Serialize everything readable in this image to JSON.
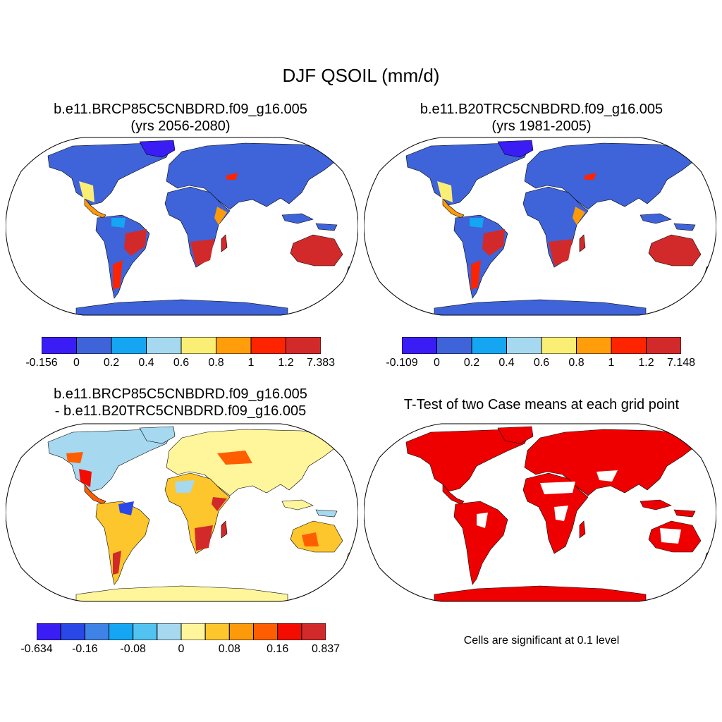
{
  "figure": {
    "title": "DJF QSOIL (mm/d)"
  },
  "panels": [
    {
      "id": "p1",
      "title_line1": "b.e11.BRCP85C5CNBDRD.f09_g16.005",
      "title_line2": "(yrs 2056-2080)",
      "colorbar": {
        "colors": [
          "#3a1df5",
          "#3f63d9",
          "#14a6f2",
          "#a6d8f0",
          "#fbee75",
          "#ff9d0a",
          "#ff2400",
          "#d22a2a"
        ],
        "labels": [
          "-0.156",
          "0",
          "0.2",
          "0.4",
          "0.6",
          "0.8",
          "1",
          "1.2",
          "7.383"
        ]
      }
    },
    {
      "id": "p2",
      "title_line1": "b.e11.B20TRC5CNBDRD.f09_g16.005",
      "title_line2": "(yrs 1981-2005)",
      "colorbar": {
        "colors": [
          "#3a1df5",
          "#3f63d9",
          "#14a6f2",
          "#a6d8f0",
          "#fbee75",
          "#ff9d0a",
          "#ff2400",
          "#d22a2a"
        ],
        "labels": [
          "-0.109",
          "0",
          "0.2",
          "0.4",
          "0.6",
          "0.8",
          "1",
          "1.2",
          "7.148"
        ]
      }
    },
    {
      "id": "p3",
      "title_line1": "b.e11.BRCP85C5CNBDRD.f09_g16.005",
      "title_line2": "- b.e11.B20TRC5CNBDRD.f09_g16.005",
      "colorbar": {
        "colors": [
          "#3a1df5",
          "#2a48e8",
          "#3f83e6",
          "#14a6f2",
          "#52c3f0",
          "#a6d8f0",
          "#fff59a",
          "#fdc62c",
          "#fd9a0a",
          "#ff5e00",
          "#f50c00",
          "#d22a2a"
        ],
        "labels": [
          "-0.634",
          "-0.16",
          "-0.08",
          "0",
          "0.08",
          "0.16",
          "0.837"
        ]
      }
    },
    {
      "id": "p4",
      "title_line1": "T-Test of two Case means at each grid point",
      "note": "Cells are significant at 0.1 level",
      "significant_color": "#ee0000"
    }
  ]
}
